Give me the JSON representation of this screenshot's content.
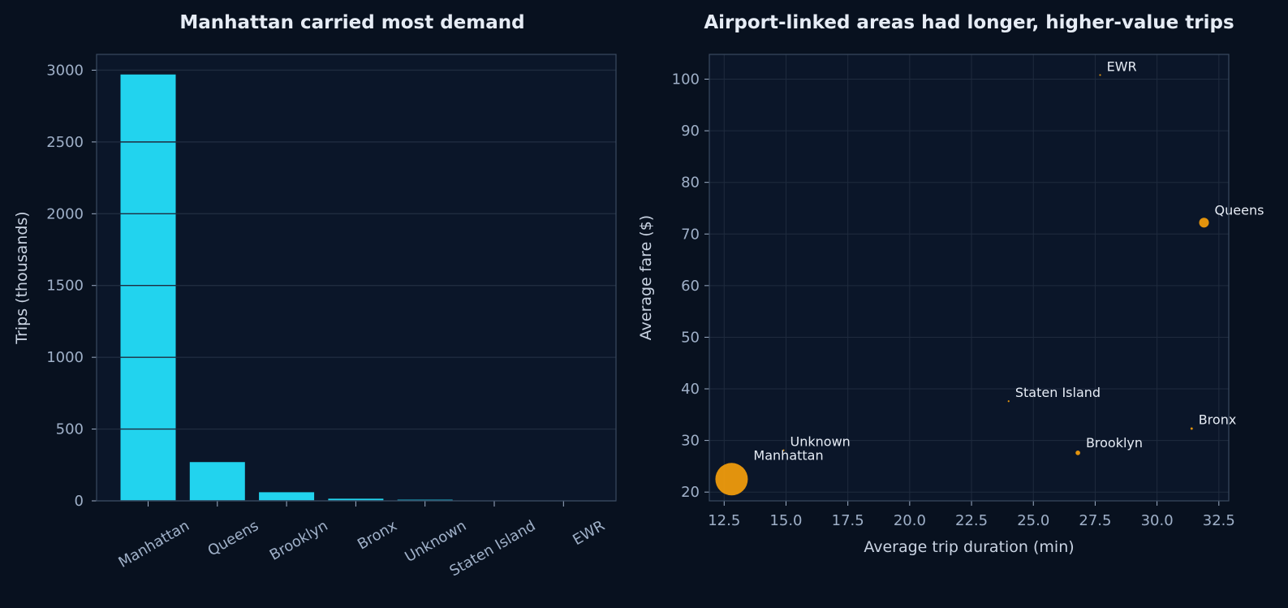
{
  "colors": {
    "background": "#08111f",
    "plot_bg": "#0b1629",
    "grid": "#1f2b3e",
    "spine": "#3a4a60",
    "bar": "#22d3ee",
    "bubble": "#f59e0b",
    "text": "#e6ecf5",
    "tick": "#9fb0c8"
  },
  "chart_data": [
    {
      "type": "bar",
      "title": "Manhattan carried most demand",
      "xlabel": "",
      "ylabel": "Trips (thousands)",
      "categories": [
        "Manhattan",
        "Queens",
        "Brooklyn",
        "Bronx",
        "Unknown",
        "Staten Island",
        "EWR"
      ],
      "values": [
        2970,
        270,
        60,
        15,
        8,
        1,
        0.5
      ],
      "ylim": [
        0,
        3110
      ],
      "yticks": [
        0,
        500,
        1000,
        1500,
        2000,
        2500,
        3000
      ],
      "ytick_labels": [
        "0",
        "500",
        "1000",
        "1500",
        "2000",
        "2500",
        "3000"
      ],
      "grid": "horizontal",
      "bar_color": "#22d3ee"
    },
    {
      "type": "scatter",
      "title": "Airport-linked areas had longer, higher-value trips",
      "xlabel": "Average trip duration (min)",
      "ylabel": "Average fare ($)",
      "xlim": [
        11.9,
        32.9
      ],
      "ylim": [
        18.3,
        104.8
      ],
      "xticks": [
        12.5,
        15.0,
        17.5,
        20.0,
        22.5,
        25.0,
        27.5,
        30.0,
        32.5
      ],
      "xtick_labels": [
        "12.5",
        "15.0",
        "17.5",
        "20.0",
        "22.5",
        "25.0",
        "27.5",
        "30.0",
        "32.5"
      ],
      "yticks": [
        20,
        30,
        40,
        50,
        60,
        70,
        80,
        90,
        100
      ],
      "ytick_labels": [
        "20",
        "30",
        "40",
        "50",
        "60",
        "70",
        "80",
        "90",
        "100"
      ],
      "grid": "both",
      "point_color": "#f59e0b",
      "size_encodes": "Trips (thousands)",
      "points": [
        {
          "label": "Manhattan",
          "x": 12.8,
          "y": 22.5,
          "trips": 2970
        },
        {
          "label": "Queens",
          "x": 31.9,
          "y": 72.2,
          "trips": 270
        },
        {
          "label": "Brooklyn",
          "x": 26.8,
          "y": 27.6,
          "trips": 60
        },
        {
          "label": "Bronx",
          "x": 31.4,
          "y": 32.3,
          "trips": 15
        },
        {
          "label": "Unknown",
          "x": 14.9,
          "y": 28.1,
          "trips": 8
        },
        {
          "label": "Staten Island",
          "x": 24.0,
          "y": 37.6,
          "trips": 1
        },
        {
          "label": "EWR",
          "x": 27.7,
          "y": 100.8,
          "trips": 0.5
        }
      ]
    }
  ]
}
